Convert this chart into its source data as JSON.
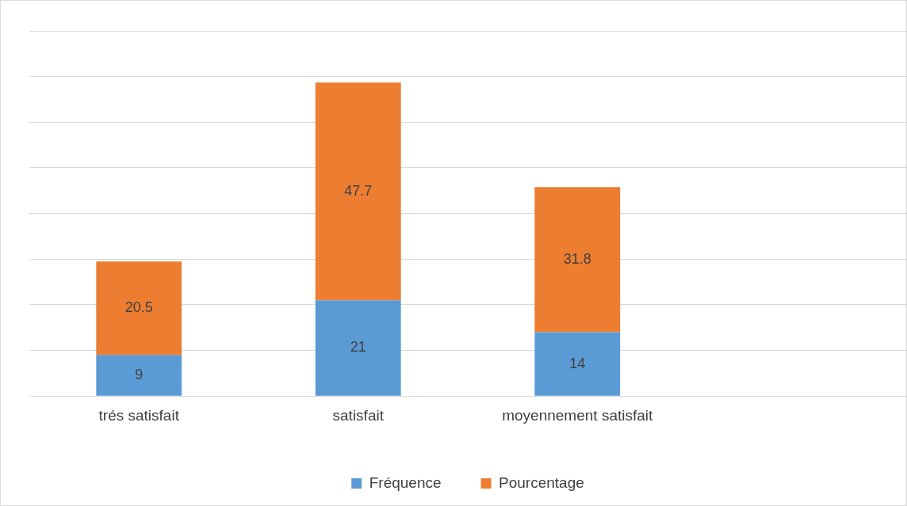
{
  "chart_data": {
    "type": "bar",
    "stacked": true,
    "categories": [
      "trés satisfait",
      "satisfait",
      "moyennement satisfait",
      null
    ],
    "series": [
      {
        "name": "Fréquence",
        "color": "#5b9bd5",
        "values": [
          9,
          21,
          14,
          null
        ]
      },
      {
        "name": "Pourcentage",
        "color": "#ed7d31",
        "values": [
          20.5,
          47.7,
          31.8,
          null
        ]
      }
    ],
    "ylim": [
      0,
      80
    ],
    "yticks": [
      {
        "value": 0,
        "label": null
      },
      {
        "value": 10,
        "label": null
      },
      {
        "value": 20,
        "label": null
      },
      {
        "value": 30,
        "label": null
      },
      {
        "value": 40,
        "label": null
      },
      {
        "value": 50,
        "label": null
      },
      {
        "value": 60,
        "label": null
      },
      {
        "value": 70,
        "label": null
      },
      {
        "value": 80,
        "label": null
      }
    ],
    "tick_labels": "x",
    "grid": "y",
    "legend": "bottom",
    "data_labels": true
  }
}
